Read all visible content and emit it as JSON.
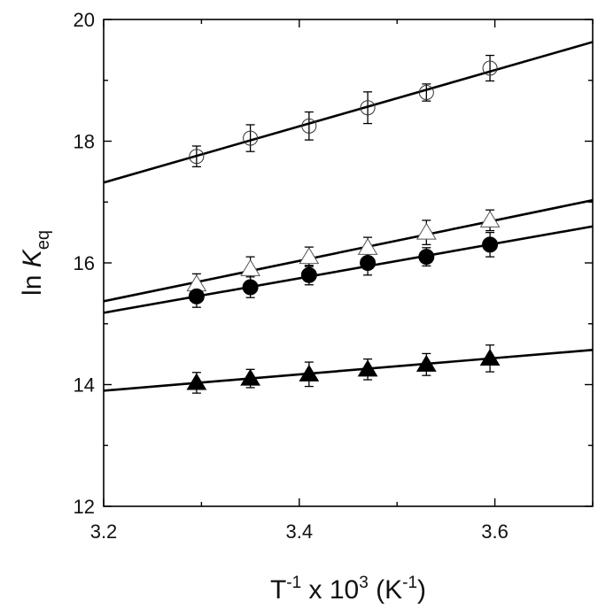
{
  "chart_data": {
    "type": "scatter",
    "title": "",
    "xlabel": {
      "main": "T",
      "exp1": "-1",
      "mid": " x 10",
      "exp2": "3",
      "unit_open": " (K",
      "exp3": "-1",
      "unit_close": ")"
    },
    "ylabel": {
      "main": "ln ",
      "var": "K",
      "sub": "eq"
    },
    "xlim": [
      3.2,
      3.7
    ],
    "ylim": [
      12,
      20
    ],
    "xticks": [
      3.2,
      3.4,
      3.6
    ],
    "xtick_labels": [
      "3.2",
      "3.4",
      "3.6"
    ],
    "yticks": [
      12,
      14,
      16,
      18,
      20
    ],
    "ytick_labels": [
      "12",
      "14",
      "16",
      "18",
      "20"
    ],
    "x": [
      3.295,
      3.35,
      3.41,
      3.47,
      3.53,
      3.595
    ],
    "series": [
      {
        "marker": "open-circle",
        "values": [
          17.75,
          18.05,
          18.25,
          18.55,
          18.8,
          19.2
        ],
        "errors": [
          0.17,
          0.22,
          0.23,
          0.26,
          0.14,
          0.21
        ],
        "fit": [
          [
            3.2,
            17.32
          ],
          [
            3.7,
            19.63
          ]
        ]
      },
      {
        "marker": "open-triangle",
        "values": [
          15.65,
          15.9,
          16.1,
          16.25,
          16.5,
          16.7
        ],
        "errors": [
          0.17,
          0.2,
          0.16,
          0.17,
          0.2,
          0.17
        ],
        "fit": [
          [
            3.2,
            15.37
          ],
          [
            3.7,
            17.03
          ]
        ]
      },
      {
        "marker": "filled-circle",
        "values": [
          15.45,
          15.6,
          15.8,
          16.0,
          16.1,
          16.3
        ],
        "errors": [
          0.18,
          0.17,
          0.16,
          0.2,
          0.15,
          0.2
        ],
        "fit": [
          [
            3.2,
            15.18
          ],
          [
            3.7,
            16.6
          ]
        ]
      },
      {
        "marker": "filled-triangle",
        "values": [
          14.03,
          14.1,
          14.17,
          14.25,
          14.33,
          14.43
        ],
        "errors": [
          0.17,
          0.15,
          0.2,
          0.17,
          0.18,
          0.22
        ],
        "fit": [
          [
            3.2,
            13.9
          ],
          [
            3.7,
            14.57
          ]
        ]
      }
    ],
    "grid": false,
    "legend": "none",
    "colors": {
      "axis": "#000000",
      "marker": "#000000",
      "open_fill": "#ffffff",
      "filled_fill": "#000000"
    }
  }
}
